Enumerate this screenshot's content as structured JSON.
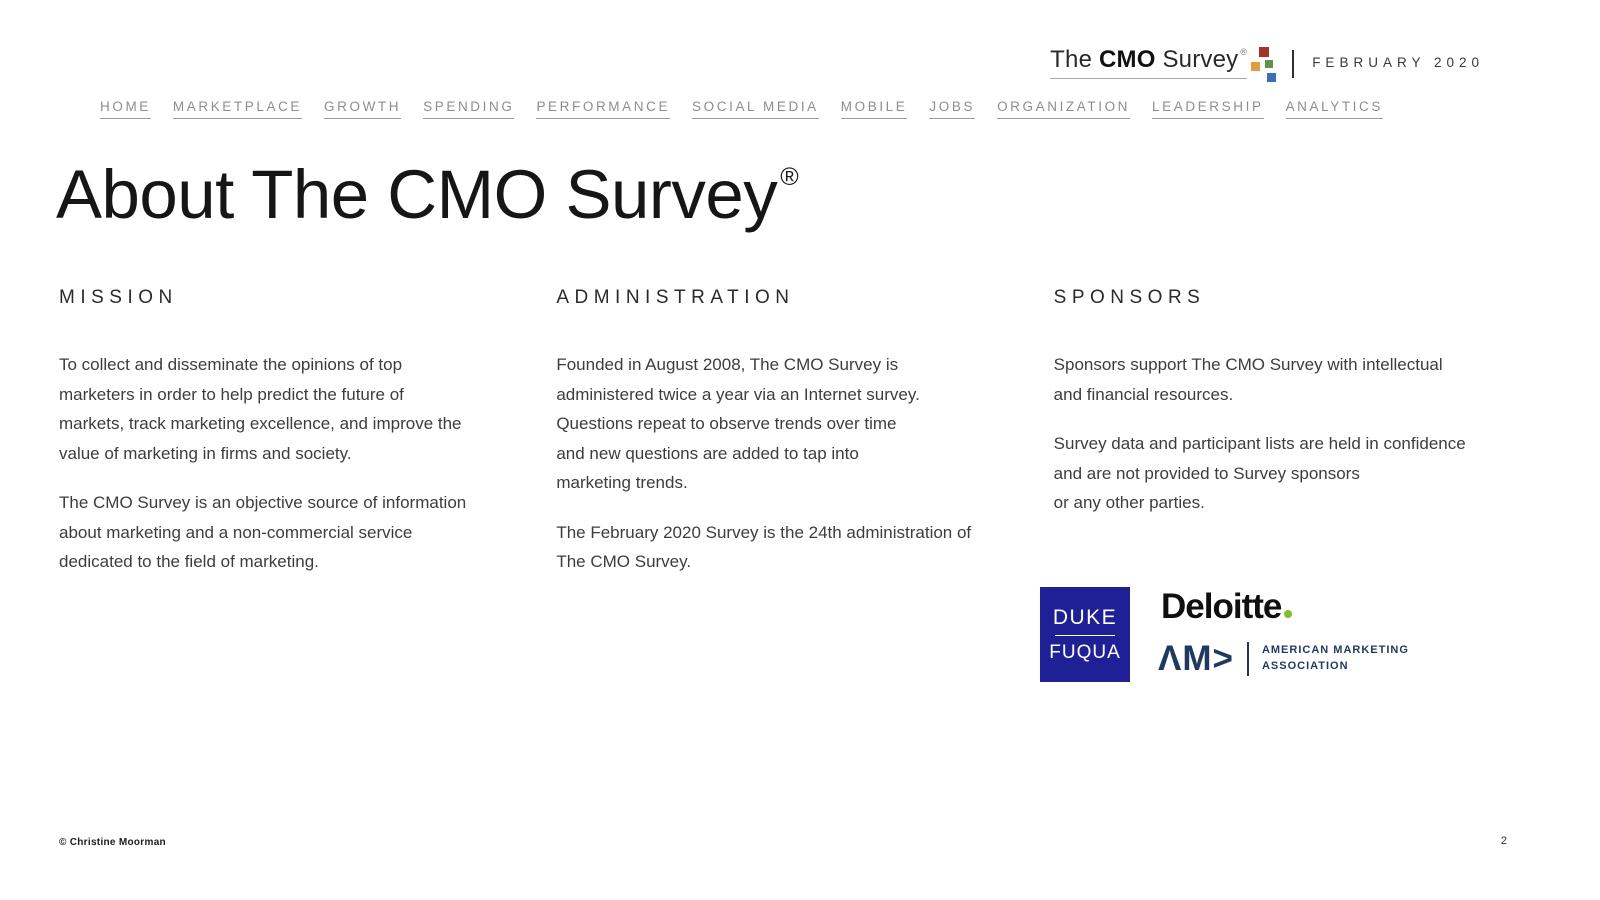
{
  "brand": {
    "wordmark": {
      "the": "The ",
      "cmo": "CMO",
      "survey": " Survey",
      "registered": "®"
    },
    "date": "FEBRUARY 2020",
    "square_colors": {
      "red": "#a23325",
      "orange": "#e59c3c",
      "green": "#5f9348",
      "blue": "#3c6eb0"
    }
  },
  "nav": {
    "items": [
      {
        "label": "HOME"
      },
      {
        "label": "MARKETPLACE"
      },
      {
        "label": "GROWTH"
      },
      {
        "label": "SPENDING"
      },
      {
        "label": "PERFORMANCE"
      },
      {
        "label": "SOCIAL MEDIA"
      },
      {
        "label": "MOBILE"
      },
      {
        "label": "JOBS"
      },
      {
        "label": "ORGANIZATION"
      },
      {
        "label": "LEADERSHIP"
      },
      {
        "label": "ANALYTICS"
      }
    ]
  },
  "title": {
    "text": "About The CMO Survey",
    "registered": "®"
  },
  "columns": [
    {
      "heading": "MISSION",
      "paragraphs": [
        "To collect and disseminate the opinions of top\nmarketers in order to help predict the future of\nmarkets, track marketing excellence, and improve the\nvalue of marketing in firms and society.",
        "The CMO Survey is an objective source of information\nabout marketing and a non-commercial service\ndedicated to the field of marketing."
      ]
    },
    {
      "heading": "ADMINISTRATION",
      "paragraphs": [
        "Founded in August 2008, The CMO Survey is\nadministered twice a year via an Internet survey.\nQuestions repeat to observe trends over time\nand new questions are added to tap into\nmarketing trends.",
        "The February 2020 Survey is the 24th administration of\nThe CMO Survey."
      ]
    },
    {
      "heading": "SPONSORS",
      "paragraphs": [
        "Sponsors support The CMO Survey with intellectual\nand financial resources.",
        "Survey data and participant lists are held in confidence\nand are not provided to Survey sponsors\nor any other parties."
      ]
    }
  ],
  "sponsors": {
    "duke": {
      "line1": "DUKE",
      "line2": "FUQUA",
      "bg_color": "#1f2096"
    },
    "deloitte": {
      "text": "Deloitte",
      "dot_color": "#86bc25"
    },
    "ama": {
      "mark": "ΛM>",
      "line1": "AMERICAN MARKETING",
      "line2": "ASSOCIATION",
      "color": "#1e3a5f"
    }
  },
  "footer": {
    "copyright": "© Christine Moorman",
    "page_number": "2"
  }
}
